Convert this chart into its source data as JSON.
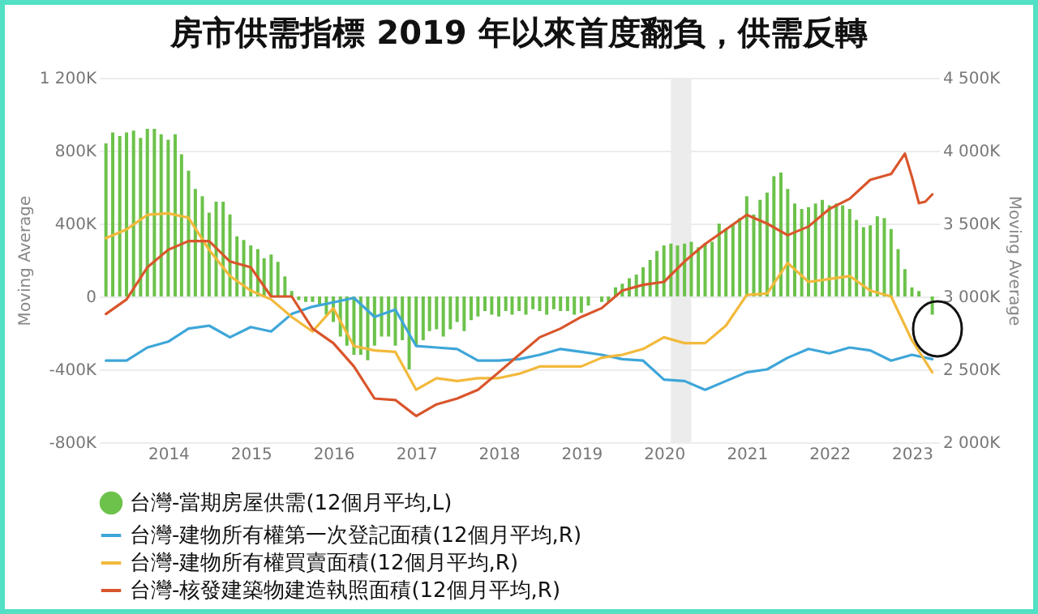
{
  "chart_data": {
    "type": "bar",
    "title": "房市供需指標 2019 年以來首度翻負，供需反轉",
    "ylabel": "Moving Average",
    "y2label": "Moving Average",
    "xlim": [
      "2013-03",
      "2023-05"
    ],
    "xticks": [
      "2014",
      "2015",
      "2016",
      "2017",
      "2018",
      "2019",
      "2020",
      "2021",
      "2022",
      "2023"
    ],
    "ylim": [
      -800,
      1200
    ],
    "yticks": [
      {
        "value": -800,
        "label": "-800K"
      },
      {
        "value": -400,
        "label": "-400K"
      },
      {
        "value": 0,
        "label": "0"
      },
      {
        "value": 400,
        "label": "400K"
      },
      {
        "value": 800,
        "label": "800K"
      },
      {
        "value": 1200,
        "label": "1 200K"
      }
    ],
    "y2lim": [
      2000,
      4500
    ],
    "y2ticks": [
      {
        "value": 2000,
        "label": "2 000K"
      },
      {
        "value": 2500,
        "label": "2 500K"
      },
      {
        "value": 3000,
        "label": "3 000K"
      },
      {
        "value": 3500,
        "label": "3 500K"
      },
      {
        "value": 4000,
        "label": "4 000K"
      },
      {
        "value": 4500,
        "label": "4 500K"
      }
    ],
    "grid": "y",
    "legend": "bottom",
    "bands": [
      {
        "axis": "x",
        "from": "2020-02",
        "to": "2020-05",
        "color": "#ececec"
      }
    ],
    "series": [
      {
        "name": "台灣-當期房屋供需(12個月平均,L)",
        "color": "#6cc24a",
        "x": [
          "2013-04",
          "2013-05",
          "2013-06",
          "2013-07",
          "2013-08",
          "2013-09",
          "2013-10",
          "2013-11",
          "2013-12",
          "2014-01",
          "2014-02",
          "2014-03",
          "2014-04",
          "2014-05",
          "2014-06",
          "2014-07",
          "2014-08",
          "2014-09",
          "2014-10",
          "2014-11",
          "2014-12",
          "2015-01",
          "2015-02",
          "2015-03",
          "2015-04",
          "2015-05",
          "2015-06",
          "2015-07",
          "2015-08",
          "2015-09",
          "2015-10",
          "2015-11",
          "2015-12",
          "2016-01",
          "2016-02",
          "2016-03",
          "2016-04",
          "2016-05",
          "2016-06",
          "2016-07",
          "2016-08",
          "2016-09",
          "2016-10",
          "2016-11",
          "2016-12",
          "2017-01",
          "2017-02",
          "2017-03",
          "2017-04",
          "2017-05",
          "2017-06",
          "2017-07",
          "2017-08",
          "2017-09",
          "2017-10",
          "2017-11",
          "2017-12",
          "2018-01",
          "2018-02",
          "2018-03",
          "2018-04",
          "2018-05",
          "2018-06",
          "2018-07",
          "2018-08",
          "2018-09",
          "2018-10",
          "2018-11",
          "2018-12",
          "2019-01",
          "2019-02",
          "2019-03",
          "2019-04",
          "2019-05",
          "2019-06",
          "2019-07",
          "2019-08",
          "2019-09",
          "2019-10",
          "2019-11",
          "2019-12",
          "2020-01",
          "2020-02",
          "2020-03",
          "2020-04",
          "2020-05",
          "2020-06",
          "2020-07",
          "2020-08",
          "2020-09",
          "2020-10",
          "2020-11",
          "2020-12",
          "2021-01",
          "2021-02",
          "2021-03",
          "2021-04",
          "2021-05",
          "2021-06",
          "2021-07",
          "2021-08",
          "2021-09",
          "2021-10",
          "2021-11",
          "2021-12",
          "2022-01",
          "2022-02",
          "2022-03",
          "2022-04",
          "2022-05",
          "2022-06",
          "2022-07",
          "2022-08",
          "2022-09",
          "2022-10",
          "2022-11",
          "2022-12",
          "2023-01",
          "2023-02",
          "2023-03",
          "2023-04"
        ],
        "values": [
          840,
          900,
          880,
          900,
          910,
          870,
          920,
          920,
          890,
          860,
          890,
          780,
          690,
          590,
          550,
          460,
          520,
          520,
          450,
          330,
          310,
          280,
          260,
          210,
          230,
          190,
          110,
          30,
          -20,
          -30,
          -30,
          -50,
          -100,
          -140,
          -220,
          -270,
          -320,
          -320,
          -350,
          -270,
          -220,
          -220,
          -270,
          -240,
          -400,
          -270,
          -240,
          -190,
          -180,
          -220,
          -180,
          -140,
          -190,
          -130,
          -110,
          -80,
          -100,
          -110,
          -80,
          -100,
          -80,
          -100,
          -70,
          -80,
          -100,
          -70,
          -80,
          -80,
          -100,
          -90,
          -50,
          null,
          -30,
          -30,
          50,
          70,
          100,
          120,
          160,
          200,
          250,
          280,
          290,
          280,
          290,
          300,
          270,
          290,
          300,
          400,
          370,
          400,
          430,
          550,
          450,
          530,
          570,
          660,
          680,
          590,
          510,
          480,
          490,
          510,
          530,
          500,
          510,
          500,
          480,
          420,
          380,
          390,
          440,
          430,
          370,
          260,
          150,
          50,
          30,
          null,
          -100
        ]
      },
      {
        "name": "台灣-建物所有權第一次登記面積(12個月平均,R)",
        "type": "line",
        "axis": "y2",
        "color": "#3ea6d8",
        "x": [
          "2013-04",
          "2013-07",
          "2013-10",
          "2014-01",
          "2014-04",
          "2014-07",
          "2014-10",
          "2015-01",
          "2015-04",
          "2015-07",
          "2015-10",
          "2016-01",
          "2016-04",
          "2016-07",
          "2016-10",
          "2017-01",
          "2017-04",
          "2017-07",
          "2017-10",
          "2018-01",
          "2018-04",
          "2018-07",
          "2018-10",
          "2019-01",
          "2019-04",
          "2019-07",
          "2019-10",
          "2020-01",
          "2020-04",
          "2020-07",
          "2020-10",
          "2021-01",
          "2021-04",
          "2021-07",
          "2021-10",
          "2022-01",
          "2022-04",
          "2022-07",
          "2022-10",
          "2023-01",
          "2023-04"
        ],
        "values": [
          2560,
          2560,
          2650,
          2690,
          2780,
          2800,
          2720,
          2790,
          2760,
          2880,
          2930,
          2960,
          2990,
          2860,
          2910,
          2660,
          2650,
          2640,
          2560,
          2560,
          2570,
          2600,
          2640,
          2620,
          2600,
          2570,
          2560,
          2430,
          2420,
          2360,
          2420,
          2480,
          2500,
          2580,
          2640,
          2610,
          2650,
          2630,
          2560,
          2600,
          2570
        ]
      },
      {
        "name": "台灣-建物所有權買賣面積(12個月平均,R)",
        "type": "line",
        "axis": "y2",
        "color": "#f2b93b",
        "x": [
          "2013-04",
          "2013-07",
          "2013-10",
          "2014-01",
          "2014-04",
          "2014-07",
          "2014-10",
          "2015-01",
          "2015-04",
          "2015-07",
          "2015-10",
          "2016-01",
          "2016-04",
          "2016-07",
          "2016-10",
          "2017-01",
          "2017-04",
          "2017-07",
          "2017-10",
          "2018-01",
          "2018-04",
          "2018-07",
          "2018-10",
          "2019-01",
          "2019-04",
          "2019-07",
          "2019-10",
          "2020-01",
          "2020-04",
          "2020-07",
          "2020-10",
          "2021-01",
          "2021-04",
          "2021-07",
          "2021-10",
          "2022-01",
          "2022-04",
          "2022-07",
          "2022-10",
          "2023-01",
          "2023-04"
        ],
        "values": [
          3400,
          3460,
          3560,
          3570,
          3540,
          3320,
          3140,
          3040,
          2980,
          2860,
          2760,
          2920,
          2660,
          2630,
          2620,
          2360,
          2440,
          2420,
          2440,
          2440,
          2470,
          2520,
          2520,
          2520,
          2580,
          2600,
          2640,
          2720,
          2680,
          2680,
          2800,
          3010,
          3020,
          3230,
          3100,
          3120,
          3140,
          3040,
          3000,
          2700,
          2480
        ]
      },
      {
        "name": "台灣-核發建築物建造執照面積(12個月平均,R)",
        "type": "line",
        "axis": "y2",
        "color": "#d9552b",
        "x": [
          "2013-04",
          "2013-07",
          "2013-10",
          "2014-01",
          "2014-04",
          "2014-07",
          "2014-10",
          "2015-01",
          "2015-04",
          "2015-07",
          "2015-10",
          "2016-01",
          "2016-04",
          "2016-07",
          "2016-10",
          "2017-01",
          "2017-04",
          "2017-07",
          "2017-10",
          "2018-01",
          "2018-04",
          "2018-07",
          "2018-10",
          "2019-01",
          "2019-04",
          "2019-07",
          "2019-10",
          "2020-01",
          "2020-04",
          "2020-07",
          "2020-10",
          "2021-01",
          "2021-04",
          "2021-07",
          "2021-10",
          "2022-01",
          "2022-04",
          "2022-07",
          "2022-10",
          "2022-12",
          "2023-01",
          "2023-02",
          "2023-03",
          "2023-04"
        ],
        "values": [
          2880,
          2980,
          3200,
          3320,
          3380,
          3380,
          3240,
          3200,
          3000,
          3000,
          2780,
          2680,
          2520,
          2300,
          2290,
          2180,
          2260,
          2300,
          2360,
          2480,
          2600,
          2720,
          2780,
          2860,
          2920,
          3040,
          3080,
          3100,
          3240,
          3360,
          3460,
          3560,
          3500,
          3420,
          3480,
          3600,
          3670,
          3800,
          3840,
          3980,
          3820,
          3640,
          3650,
          3700
        ]
      }
    ]
  }
}
